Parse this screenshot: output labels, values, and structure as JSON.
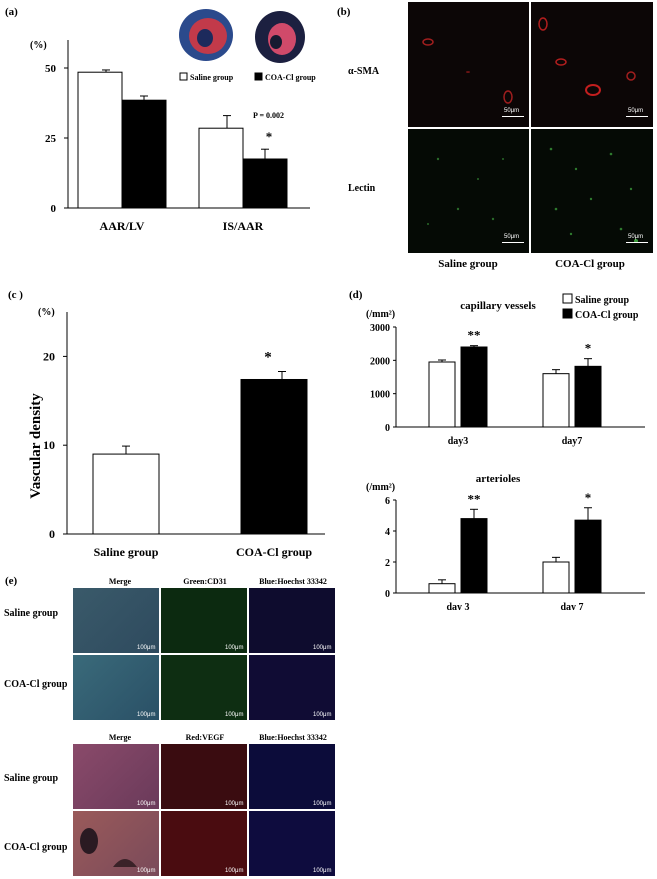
{
  "panel_a": {
    "label": "(a)",
    "ylabel": "(%)",
    "legend": [
      "Saline group",
      "COA-Cl group"
    ],
    "annotation_p": "P = 0.002",
    "star": "*",
    "chart_data": {
      "type": "bar",
      "categories": [
        "AAR/LV",
        "IS/AAR"
      ],
      "series": [
        {
          "name": "Saline group",
          "values": [
            48.5,
            28.5
          ],
          "errors": [
            0.8,
            4.5
          ],
          "color": "#ffffff"
        },
        {
          "name": "COA-Cl group",
          "values": [
            38.5,
            17.5
          ],
          "errors": [
            1.5,
            3.5
          ],
          "color": "#000000"
        }
      ],
      "ylim": [
        0,
        60
      ],
      "yticks": [
        "0",
        "25",
        "50"
      ],
      "ytick_values": [
        0,
        25,
        50
      ]
    }
  },
  "panel_b": {
    "label": "(b)",
    "row_labels": [
      "α-SMA",
      "Lectin"
    ],
    "col_labels": [
      "Saline group",
      "COA-Cl group"
    ],
    "scale": "50μm"
  },
  "panel_c": {
    "label": "(c )",
    "ylabel": "(%)",
    "yaxis_title": "Vascular density",
    "star": "*",
    "chart_data": {
      "type": "bar",
      "categories": [
        "Saline group",
        "COA-Cl group"
      ],
      "values": [
        9.0,
        17.4
      ],
      "errors": [
        0.9,
        0.9
      ],
      "colors": [
        "#ffffff",
        "#000000"
      ],
      "ylim": [
        0,
        25
      ],
      "yticks": [
        "0",
        "10",
        "20"
      ],
      "ytick_values": [
        0,
        10,
        20
      ]
    }
  },
  "panel_d": {
    "label": "(d)",
    "legend": [
      "Saline group",
      "COA-Cl group"
    ],
    "top": {
      "title": "capillary vessels",
      "unit": "(/mm²)",
      "stars": [
        "**",
        "*"
      ],
      "chart_data": {
        "type": "bar",
        "categories": [
          "day3",
          "day7"
        ],
        "series": [
          {
            "name": "Saline group",
            "values": [
              1950,
              1600
            ],
            "errors": [
              60,
              120
            ]
          },
          {
            "name": "COA-Cl group",
            "values": [
              2400,
              1820
            ],
            "errors": [
              40,
              230
            ]
          }
        ],
        "ylim": [
          0,
          3000
        ],
        "yticks": [
          "0",
          "1000",
          "2000",
          "3000"
        ],
        "ytick_values": [
          0,
          1000,
          2000,
          3000
        ]
      }
    },
    "bottom": {
      "title": "arterioles",
      "unit": "(/mm²)",
      "stars": [
        "**",
        "*"
      ],
      "chart_data": {
        "type": "bar",
        "categories": [
          "day 3",
          "day 7"
        ],
        "series": [
          {
            "name": "Saline group",
            "values": [
              0.6,
              2.0
            ],
            "errors": [
              0.25,
              0.3
            ]
          },
          {
            "name": "COA-Cl group",
            "values": [
              4.8,
              4.7
            ],
            "errors": [
              0.6,
              0.8
            ]
          }
        ],
        "ylim": [
          0,
          6
        ],
        "yticks": [
          "0",
          "2",
          "4",
          "6"
        ],
        "ytick_values": [
          0,
          2,
          4,
          6
        ]
      }
    }
  },
  "panel_e": {
    "label": "(e)",
    "top_cols": [
      "Merge",
      "Green:CD31",
      "Blue:Hoechst 33342"
    ],
    "bottom_cols": [
      "Merge",
      "Red:VEGF",
      "Blue:Hoechst 33342"
    ],
    "row_labels": [
      "Saline group",
      "COA-Cl group"
    ],
    "scale": "100μm"
  }
}
